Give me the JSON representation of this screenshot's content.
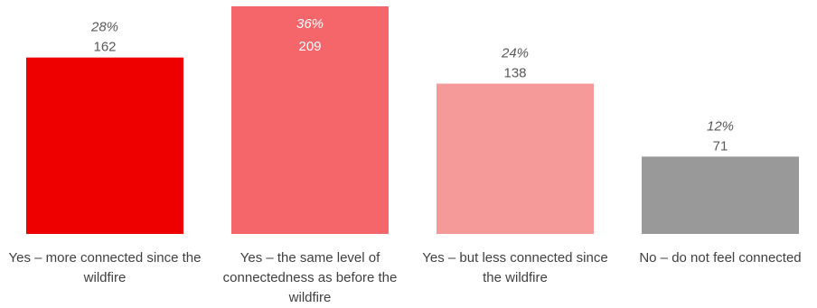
{
  "chart_data": {
    "type": "bar",
    "categories": [
      "Yes – more connected since the wildfire",
      "Yes – the same level of connectedness as before the wildfire",
      "Yes – but less connected since the wildfire",
      "No – do not feel connected"
    ],
    "values": [
      162,
      209,
      138,
      71
    ],
    "percent_labels": [
      "28%",
      "36%",
      "24%",
      "12%"
    ],
    "colors": [
      "#ee0000",
      "#f4666a",
      "#f69999",
      "#999999"
    ],
    "label_colors": {
      "outside": "#595959",
      "inside": "#ffffff"
    },
    "ylim": [
      0,
      209
    ],
    "grid": false,
    "legend": "none",
    "title": "",
    "xlabel": "",
    "ylabel": ""
  }
}
